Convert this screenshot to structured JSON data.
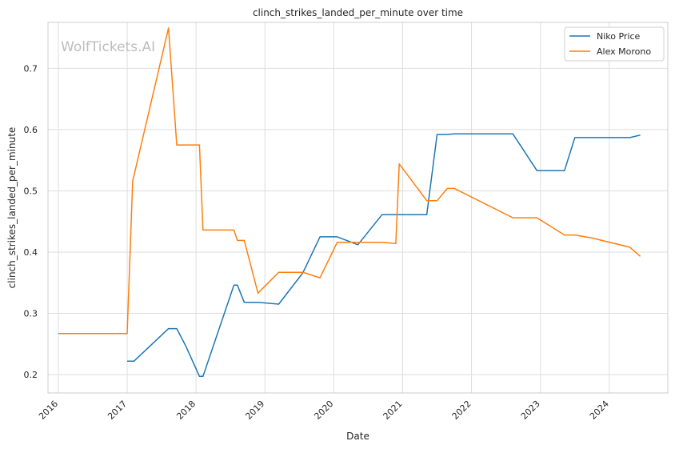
{
  "chart_data": {
    "type": "line",
    "title": "clinch_strikes_landed_per_minute over time",
    "xlabel": "Date",
    "ylabel": "clinch_strikes_landed_per_minute",
    "watermark": "WolfTickets.AI",
    "xlim": [
      2015.85,
      2024.85
    ],
    "ylim": [
      0.17,
      0.775
    ],
    "x_ticks": [
      2016,
      2017,
      2018,
      2019,
      2020,
      2021,
      2022,
      2023,
      2024
    ],
    "y_ticks": [
      0.2,
      0.3,
      0.4,
      0.5,
      0.6,
      0.7
    ],
    "y_tick_labels": [
      "0.2",
      "0.3",
      "0.4",
      "0.5",
      "0.6",
      "0.7"
    ],
    "grid": true,
    "legend_position": "top-right",
    "series": [
      {
        "name": "Niko Price",
        "color": "#1f77b4",
        "x": [
          2017.0,
          2017.1,
          2017.6,
          2017.72,
          2017.85,
          2018.05,
          2018.1,
          2018.55,
          2018.6,
          2018.7,
          2018.9,
          2019.2,
          2019.55,
          2019.8,
          2020.05,
          2020.35,
          2020.7,
          2020.9,
          2021.35,
          2021.5,
          2021.65,
          2021.75,
          2022.6,
          2022.95,
          2023.35,
          2023.5,
          2024.3,
          2024.45
        ],
        "y": [
          0.222,
          0.222,
          0.275,
          0.275,
          0.247,
          0.197,
          0.197,
          0.346,
          0.346,
          0.318,
          0.318,
          0.315,
          0.366,
          0.425,
          0.425,
          0.412,
          0.461,
          0.461,
          0.461,
          0.592,
          0.592,
          0.593,
          0.593,
          0.533,
          0.533,
          0.587,
          0.587,
          0.591
        ]
      },
      {
        "name": "Alex Morono",
        "color": "#ff7f0e",
        "x": [
          2016.0,
          2017.0,
          2017.08,
          2017.6,
          2017.72,
          2018.05,
          2018.1,
          2018.55,
          2018.6,
          2018.7,
          2018.9,
          2019.05,
          2019.2,
          2019.55,
          2019.8,
          2020.05,
          2020.35,
          2020.7,
          2020.9,
          2020.95,
          2021.35,
          2021.5,
          2021.65,
          2021.75,
          2022.6,
          2022.95,
          2023.35,
          2023.5,
          2023.75,
          2024.3,
          2024.45
        ],
        "y": [
          0.267,
          0.267,
          0.516,
          0.766,
          0.575,
          0.575,
          0.436,
          0.436,
          0.419,
          0.419,
          0.333,
          0.35,
          0.367,
          0.367,
          0.358,
          0.416,
          0.416,
          0.416,
          0.414,
          0.544,
          0.484,
          0.484,
          0.504,
          0.504,
          0.456,
          0.456,
          0.428,
          0.428,
          0.423,
          0.408,
          0.393
        ]
      }
    ]
  }
}
